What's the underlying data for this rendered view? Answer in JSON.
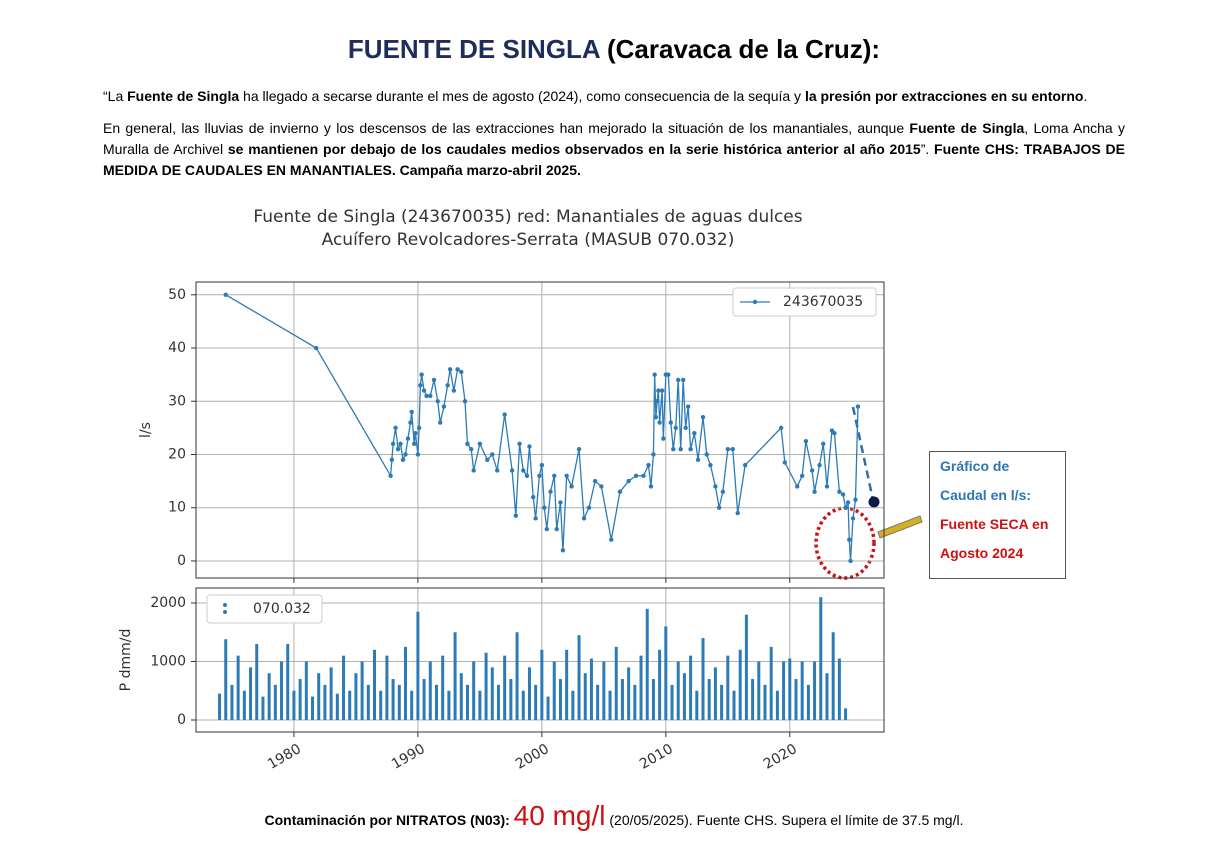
{
  "header": {
    "title_main": "FUENTE DE SINGLA",
    "title_rest": "(Caravaca de la Cruz):"
  },
  "paragraphs": [
    [
      {
        "text": "“La ",
        "bold": false
      },
      {
        "text": "Fuente de Singla",
        "bold": true
      },
      {
        "text": " ha llegado a secarse durante el mes de agosto (2024), como consecuencia de la sequía y ",
        "bold": false
      },
      {
        "text": "la presión por extracciones en su entorno",
        "bold": true
      },
      {
        "text": ".",
        "bold": false
      }
    ],
    [
      {
        "text": "En general, las lluvias de invierno y los descensos de las extracciones han mejorado la situación de los manantiales, aunque ",
        "bold": false
      },
      {
        "text": "Fuente de Singla",
        "bold": true
      },
      {
        "text": ", Loma Ancha y Muralla de Archivel ",
        "bold": false
      },
      {
        "text": "se mantienen por debajo de los caudales medios observados en la serie histórica anterior al año 2015",
        "bold": true
      },
      {
        "text": "”. ",
        "bold": false
      },
      {
        "text": "Fuente CHS: TRABAJOS DE MEDIDA DE CAUDALES EN MANANTIALES. Campaña marzo-abril 2025.",
        "bold": true
      }
    ]
  ],
  "chart_data": [
    {
      "type": "line",
      "title": [
        "Fuente de Singla (243670035) red: Manantiales de aguas dulces",
        "Acuífero Revolcadores-Serrata (MASUB 070.032)"
      ],
      "ylabel": "l/s",
      "x": [
        1974.5,
        1981.8,
        1987.8,
        1987.9,
        1988,
        1988.2,
        1988.4,
        1988.6,
        1988.8,
        1989,
        1989.2,
        1989.4,
        1989.5,
        1989.7,
        1989.8,
        1990,
        1990.1,
        1990.2,
        1990.3,
        1990.5,
        1990.7,
        1991,
        1991.3,
        1991.6,
        1991.8,
        1992.1,
        1992.4,
        1992.6,
        1992.9,
        1993.2,
        1993.5,
        1993.8,
        1994,
        1994.3,
        1994.5,
        1995,
        1995.6,
        1996,
        1996.4,
        1997,
        1997.6,
        1997.9,
        1998.2,
        1998.5,
        1998.8,
        1999,
        1999.3,
        1999.5,
        1999.8,
        2000,
        2000.2,
        2000.4,
        2000.7,
        2001,
        2001.2,
        2001.5,
        2001.7,
        2002,
        2002.4,
        2003,
        2003.4,
        2003.8,
        2004.3,
        2004.8,
        2005.6,
        2006.3,
        2007,
        2007.6,
        2008.2,
        2008.6,
        2008.8,
        2009,
        2009.1,
        2009.2,
        2009.3,
        2009.4,
        2009.5,
        2009.7,
        2009.8,
        2010,
        2010.2,
        2010.4,
        2010.6,
        2010.8,
        2011,
        2011.2,
        2011.4,
        2011.6,
        2011.8,
        2012,
        2012.3,
        2012.6,
        2013,
        2013.3,
        2013.6,
        2014,
        2014.3,
        2014.6,
        2015,
        2015.4,
        2015.8,
        2016.4,
        2019.3,
        2019.6,
        2020.6,
        2021,
        2021.3,
        2021.8,
        2022,
        2022.4,
        2022.7,
        2023,
        2023.4,
        2023.6,
        2024,
        2024.3,
        2024.5,
        2024.7,
        2024.8,
        2024.9,
        2025.1,
        2025.3,
        2025.5
      ],
      "series": [
        {
          "name": "243670035",
          "color": "#2c7bb6",
          "values": [
            50,
            40,
            16,
            19,
            22,
            25,
            21,
            22,
            19,
            20,
            23,
            26,
            28,
            22,
            24,
            20,
            25,
            33,
            35,
            32,
            31,
            31,
            34,
            30,
            26,
            29,
            33,
            36,
            32,
            36,
            35.5,
            30,
            22,
            21,
            17,
            22,
            19,
            20,
            17,
            27.5,
            17,
            8.5,
            22,
            17,
            16,
            21.5,
            12,
            8,
            16,
            18,
            10,
            6,
            13,
            16,
            6,
            11,
            2,
            16,
            14,
            21,
            8,
            10,
            15,
            14,
            4,
            13,
            15,
            16,
            16,
            18,
            14,
            20,
            35,
            27,
            30,
            32,
            26,
            32,
            23,
            35,
            35,
            26,
            21,
            25,
            34,
            21,
            34,
            25,
            29,
            21,
            24,
            19,
            27,
            20,
            18,
            14,
            10,
            13,
            21,
            21,
            9,
            18,
            25,
            18.5,
            14,
            16,
            22.5,
            17,
            13,
            18,
            22,
            14,
            24.5,
            24,
            13,
            12.5,
            10,
            11,
            4,
            0,
            8,
            11.5,
            29
          ]
        }
      ],
      "xlim": [
        1972.1,
        2027.6
      ],
      "ylim": [
        -3.2,
        52.4
      ],
      "yticks": [
        0,
        10,
        20,
        30,
        40,
        50
      ],
      "xticks": [
        1980,
        1990,
        2000,
        2010,
        2020
      ],
      "grid": true,
      "legend": "upper right"
    },
    {
      "type": "bar",
      "ylabel": "P dmm/d",
      "x": [
        1974,
        1974.5,
        1975,
        1975.5,
        1976,
        1976.5,
        1977,
        1977.5,
        1978,
        1978.5,
        1979,
        1979.5,
        1980,
        1980.5,
        1981,
        1981.5,
        1982,
        1982.5,
        1983,
        1983.5,
        1984,
        1984.5,
        1985,
        1985.5,
        1986,
        1986.5,
        1987,
        1987.5,
        1988,
        1988.5,
        1989,
        1989.5,
        1990,
        1990.5,
        1991,
        1991.5,
        1992,
        1992.5,
        1993,
        1993.5,
        1994,
        1994.5,
        1995,
        1995.5,
        1996,
        1996.5,
        1997,
        1997.5,
        1998,
        1998.5,
        1999,
        1999.5,
        2000,
        2000.5,
        2001,
        2001.5,
        2002,
        2002.5,
        2003,
        2003.5,
        2004,
        2004.5,
        2005,
        2005.5,
        2006,
        2006.5,
        2007,
        2007.5,
        2008,
        2008.5,
        2009,
        2009.5,
        2010,
        2010.5,
        2011,
        2011.5,
        2012,
        2012.5,
        2013,
        2013.5,
        2014,
        2014.5,
        2015,
        2015.5,
        2016,
        2016.5,
        2017,
        2017.5,
        2018,
        2018.5,
        2019,
        2019.5,
        2020,
        2020.5,
        2021,
        2021.5,
        2022,
        2022.5,
        2023,
        2023.5,
        2024,
        2024.5
      ],
      "series": [
        {
          "name": "070.032",
          "color": "#2c7bb6",
          "values": [
            450,
            1380,
            600,
            1100,
            500,
            900,
            1300,
            400,
            800,
            600,
            1000,
            1300,
            500,
            700,
            1000,
            400,
            800,
            600,
            900,
            450,
            1100,
            500,
            800,
            1000,
            600,
            1200,
            500,
            1100,
            700,
            600,
            1250,
            500,
            1850,
            700,
            1000,
            600,
            1100,
            500,
            1500,
            800,
            600,
            1000,
            500,
            1150,
            900,
            600,
            1100,
            700,
            1500,
            500,
            900,
            600,
            1200,
            400,
            1000,
            700,
            1200,
            500,
            1450,
            800,
            1050,
            600,
            1000,
            500,
            1250,
            700,
            900,
            600,
            1100,
            1900,
            700,
            1200,
            1600,
            600,
            1000,
            800,
            1100,
            500,
            1400,
            700,
            900,
            600,
            1100,
            500,
            1200,
            1800,
            700,
            1000,
            600,
            1250,
            500,
            1000,
            1050,
            700,
            1000,
            600,
            1000,
            2100,
            800,
            1500,
            1050,
            200
          ]
        }
      ],
      "xlim": [
        1972.1,
        2027.6
      ],
      "ylim": [
        -205,
        2256
      ],
      "yticks": [
        0,
        1000,
        2000
      ],
      "xticks": [
        1980,
        1990,
        2000,
        2010,
        2020
      ],
      "grid": true,
      "legend": "upper left"
    }
  ],
  "annotation": {
    "lines": [
      "Gráfico de",
      "Caudal en l/s:",
      "Fuente SECA en",
      "Agosto 2024"
    ]
  },
  "footer": {
    "label": "Contaminación por NITRATOS (N03)",
    "sep": ":",
    "value": "40 mg/l",
    "rest": "(20/05/2025). Fuente CHS. Supera el límite de 37.5 mg/l."
  }
}
